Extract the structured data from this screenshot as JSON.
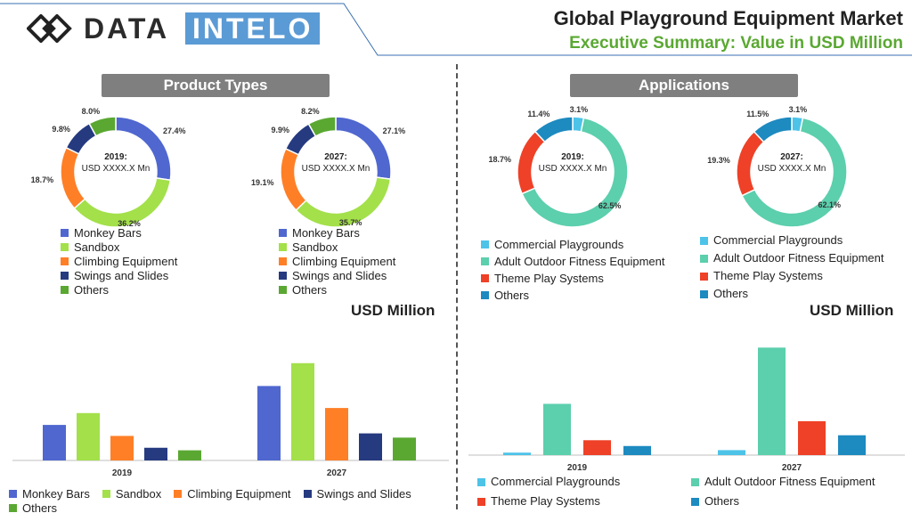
{
  "header": {
    "logo_part1": "DATA",
    "logo_part2": "INTELO",
    "title": "Global Playground Equipment Market",
    "subtitle": "Executive Summary: Value in USD Million"
  },
  "left": {
    "section_title": "Product Types",
    "usd_label": "USD Million"
  },
  "right": {
    "section_title": "Applications",
    "usd_label": "USD Million"
  },
  "colors": {
    "monkey_bars": "#4f67cf",
    "sandbox": "#a3e04a",
    "climbing": "#ff7f27",
    "swings": "#263a80",
    "others_product": "#5aa832",
    "commercial": "#4dc3e8",
    "adult_outdoor": "#5ccfad",
    "theme_play": "#ee4127",
    "others_app": "#1d8ac0"
  },
  "chart_data": [
    {
      "type": "pie",
      "subtype": "donut",
      "group": "Product Types",
      "center_year": "2019:",
      "center_value": "USD XXXX.X Mn",
      "categories": [
        "Monkey Bars",
        "Sandbox",
        "Climbing Equipment",
        "Swings and Slides",
        "Others"
      ],
      "values": [
        27.4,
        36.2,
        18.7,
        9.8,
        8.0
      ],
      "labels": [
        "27.4%",
        "36.2%",
        "18.7%",
        "9.8%",
        "8.0%"
      ]
    },
    {
      "type": "pie",
      "subtype": "donut",
      "group": "Product Types",
      "center_year": "2027:",
      "center_value": "USD XXXX.X Mn",
      "categories": [
        "Monkey Bars",
        "Sandbox",
        "Climbing Equipment",
        "Swings and Slides",
        "Others"
      ],
      "values": [
        27.1,
        35.7,
        19.1,
        9.9,
        8.2
      ],
      "labels": [
        "27.1%",
        "35.7%",
        "19.1%",
        "9.9%",
        "8.2%"
      ]
    },
    {
      "type": "pie",
      "subtype": "donut",
      "group": "Applications",
      "center_year": "2019:",
      "center_value": "USD XXXX.X Mn",
      "categories": [
        "Commercial Playgrounds",
        "Adult Outdoor Fitness Equipment",
        "Theme Play Systems",
        "Others"
      ],
      "values": [
        3.1,
        62.5,
        18.7,
        11.4
      ],
      "labels": [
        "3.1%",
        "62.5%",
        "18.7%",
        "11.4%"
      ]
    },
    {
      "type": "pie",
      "subtype": "donut",
      "group": "Applications",
      "center_year": "2027:",
      "center_value": "USD XXXX.X Mn",
      "categories": [
        "Commercial Playgrounds",
        "Adult Outdoor Fitness Equipment",
        "Theme Play Systems",
        "Others"
      ],
      "values": [
        3.1,
        62.1,
        19.3,
        11.5
      ],
      "labels": [
        "3.1%",
        "62.1%",
        "19.3%",
        "11.5%"
      ]
    },
    {
      "type": "bar",
      "group": "Product Types",
      "categories": [
        "2019",
        "2027"
      ],
      "series": [
        {
          "name": "Monkey Bars",
          "values": [
            42,
            88
          ]
        },
        {
          "name": "Sandbox",
          "values": [
            56,
            115
          ]
        },
        {
          "name": "Climbing Equipment",
          "values": [
            29,
            62
          ]
        },
        {
          "name": "Swings and Slides",
          "values": [
            15,
            32
          ]
        },
        {
          "name": "Others",
          "values": [
            12,
            27
          ]
        }
      ],
      "ylim": [
        0,
        120
      ],
      "grid": false
    },
    {
      "type": "bar",
      "group": "Applications",
      "categories": [
        "2019",
        "2027"
      ],
      "series": [
        {
          "name": "Commercial Playgrounds",
          "values": [
            3,
            6
          ]
        },
        {
          "name": "Adult Outdoor Fitness Equipment",
          "values": [
            62,
            130
          ]
        },
        {
          "name": "Theme Play Systems",
          "values": [
            18,
            41
          ]
        },
        {
          "name": "Others",
          "values": [
            11,
            24
          ]
        }
      ],
      "ylim": [
        0,
        140
      ],
      "grid": false
    }
  ]
}
